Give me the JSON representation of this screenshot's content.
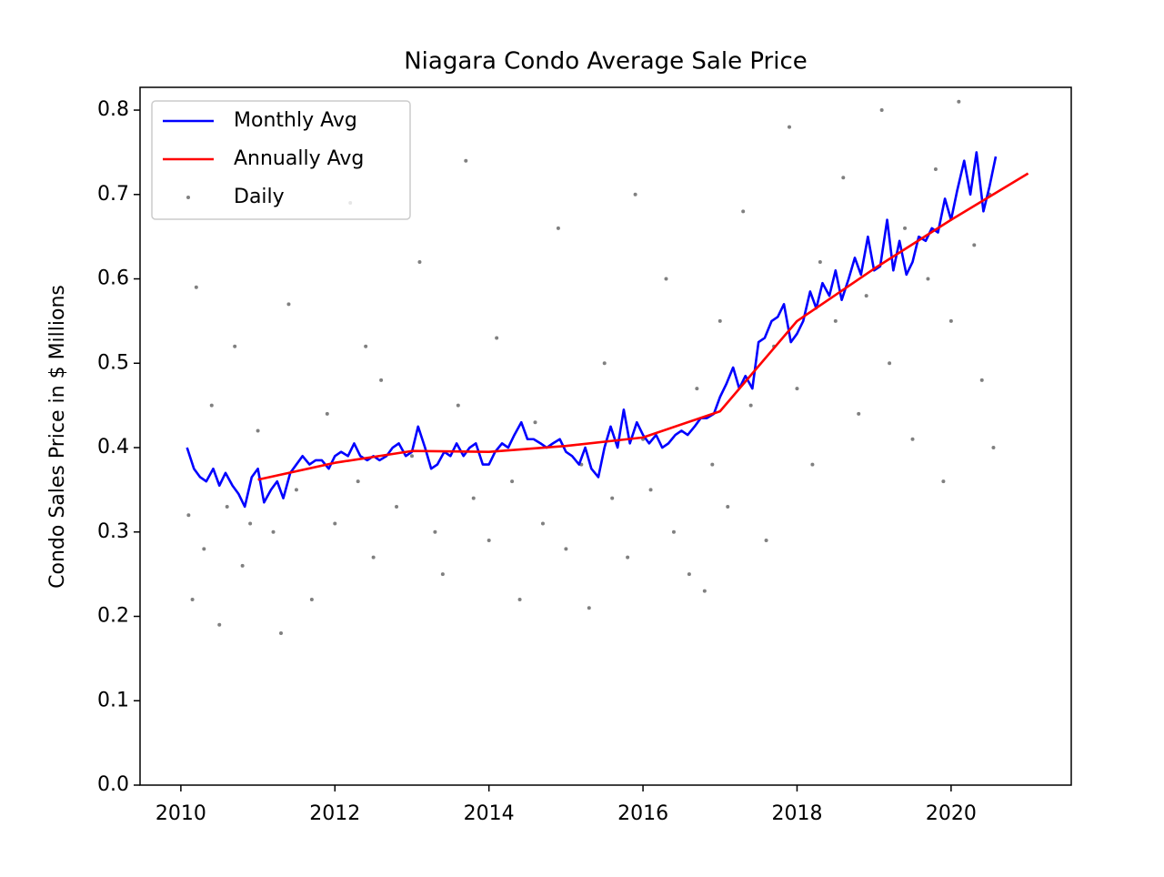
{
  "chart_data": {
    "type": "line",
    "title": "Niagara Condo Average Sale Price",
    "y_label": "Condo Sales Price in $ Millions",
    "xlim": [
      2009.47,
      2021.56
    ],
    "ylim": [
      0,
      0.827
    ],
    "xticks": [
      2010,
      2012,
      2014,
      2016,
      2018,
      2020
    ],
    "yticks": [
      {
        "value": 0,
        "label": "0.0"
      },
      0.1,
      0.2,
      0.3,
      0.4,
      0.5,
      0.6,
      0.7,
      0.8
    ],
    "legend": "upper left",
    "series": [
      {
        "name": "Daily",
        "kind": "scatter",
        "color": "#808080",
        "x": [
          2010.1,
          2010.2,
          2010.3,
          2010.4,
          2010.5,
          2010.6,
          2010.7,
          2010.8,
          2010.9,
          2011.0,
          2011.2,
          2011.4,
          2011.5,
          2011.7,
          2011.9,
          2012.0,
          2012.2,
          2012.3,
          2012.5,
          2012.6,
          2012.8,
          2013.0,
          2013.1,
          2013.3,
          2013.4,
          2013.6,
          2013.8,
          2014.0,
          2014.1,
          2014.3,
          2014.4,
          2014.6,
          2014.7,
          2014.9,
          2015.0,
          2015.2,
          2015.3,
          2015.5,
          2015.6,
          2015.8,
          2016.0,
          2016.1,
          2016.3,
          2016.4,
          2016.6,
          2016.7,
          2016.9,
          2017.0,
          2017.1,
          2017.3,
          2017.4,
          2017.6,
          2017.7,
          2017.9,
          2018.0,
          2018.2,
          2018.3,
          2018.5,
          2018.6,
          2018.8,
          2018.9,
          2019.1,
          2019.2,
          2019.4,
          2019.5,
          2019.7,
          2019.8,
          2020.0,
          2020.1,
          2020.3,
          2020.4,
          2020.5,
          2020.55,
          2010.15,
          2011.3,
          2012.4,
          2013.7,
          2015.9,
          2016.8,
          2019.9
        ],
        "values": [
          0.32,
          0.59,
          0.28,
          0.45,
          0.19,
          0.33,
          0.52,
          0.26,
          0.31,
          0.42,
          0.3,
          0.57,
          0.35,
          0.22,
          0.44,
          0.31,
          0.69,
          0.36,
          0.27,
          0.48,
          0.33,
          0.39,
          0.62,
          0.3,
          0.25,
          0.45,
          0.34,
          0.29,
          0.53,
          0.36,
          0.22,
          0.43,
          0.31,
          0.66,
          0.28,
          0.38,
          0.21,
          0.5,
          0.34,
          0.27,
          0.41,
          0.35,
          0.6,
          0.3,
          0.25,
          0.47,
          0.38,
          0.55,
          0.33,
          0.68,
          0.45,
          0.29,
          0.52,
          0.78,
          0.47,
          0.38,
          0.62,
          0.55,
          0.72,
          0.44,
          0.58,
          0.8,
          0.5,
          0.66,
          0.41,
          0.6,
          0.73,
          0.55,
          0.81,
          0.64,
          0.48,
          0.7,
          0.4,
          0.22,
          0.18,
          0.52,
          0.74,
          0.7,
          0.23,
          0.36
        ]
      },
      {
        "name": "Monthly Avg",
        "kind": "line",
        "color": "#0000ff",
        "x": [
          2010.08,
          2010.17,
          2010.25,
          2010.33,
          2010.42,
          2010.5,
          2010.58,
          2010.67,
          2010.75,
          2010.83,
          2010.92,
          2011.0,
          2011.08,
          2011.17,
          2011.25,
          2011.33,
          2011.42,
          2011.5,
          2011.58,
          2011.67,
          2011.75,
          2011.83,
          2011.92,
          2012.0,
          2012.08,
          2012.17,
          2012.25,
          2012.33,
          2012.42,
          2012.5,
          2012.58,
          2012.67,
          2012.75,
          2012.83,
          2012.92,
          2013.0,
          2013.08,
          2013.17,
          2013.25,
          2013.33,
          2013.42,
          2013.5,
          2013.58,
          2013.67,
          2013.75,
          2013.83,
          2013.92,
          2014.0,
          2014.08,
          2014.17,
          2014.25,
          2014.33,
          2014.42,
          2014.5,
          2014.58,
          2014.67,
          2014.75,
          2014.83,
          2014.92,
          2015.0,
          2015.08,
          2015.17,
          2015.25,
          2015.33,
          2015.42,
          2015.5,
          2015.58,
          2015.67,
          2015.75,
          2015.83,
          2015.92,
          2016.0,
          2016.08,
          2016.17,
          2016.25,
          2016.33,
          2016.42,
          2016.5,
          2016.58,
          2016.67,
          2016.75,
          2016.83,
          2016.92,
          2017.0,
          2017.08,
          2017.17,
          2017.25,
          2017.33,
          2017.42,
          2017.5,
          2017.58,
          2017.67,
          2017.75,
          2017.83,
          2017.92,
          2018.0,
          2018.08,
          2018.17,
          2018.25,
          2018.33,
          2018.42,
          2018.5,
          2018.58,
          2018.67,
          2018.75,
          2018.83,
          2018.92,
          2019.0,
          2019.08,
          2019.17,
          2019.25,
          2019.33,
          2019.42,
          2019.5,
          2019.58,
          2019.67,
          2019.75,
          2019.83,
          2019.92,
          2020.0,
          2020.08,
          2020.17,
          2020.25,
          2020.33,
          2020.42,
          2020.5,
          2020.58
        ],
        "values": [
          0.4,
          0.375,
          0.365,
          0.36,
          0.375,
          0.355,
          0.37,
          0.355,
          0.345,
          0.33,
          0.365,
          0.375,
          0.335,
          0.35,
          0.36,
          0.34,
          0.37,
          0.38,
          0.39,
          0.38,
          0.385,
          0.385,
          0.375,
          0.39,
          0.395,
          0.39,
          0.405,
          0.39,
          0.385,
          0.39,
          0.385,
          0.39,
          0.4,
          0.405,
          0.39,
          0.395,
          0.425,
          0.4,
          0.375,
          0.38,
          0.395,
          0.39,
          0.405,
          0.39,
          0.4,
          0.405,
          0.38,
          0.38,
          0.395,
          0.405,
          0.4,
          0.415,
          0.43,
          0.41,
          0.41,
          0.405,
          0.4,
          0.405,
          0.41,
          0.395,
          0.39,
          0.38,
          0.4,
          0.375,
          0.365,
          0.4,
          0.425,
          0.4,
          0.445,
          0.405,
          0.43,
          0.415,
          0.405,
          0.415,
          0.4,
          0.405,
          0.415,
          0.42,
          0.415,
          0.425,
          0.435,
          0.435,
          0.44,
          0.46,
          0.475,
          0.495,
          0.47,
          0.485,
          0.47,
          0.525,
          0.53,
          0.55,
          0.555,
          0.57,
          0.525,
          0.535,
          0.55,
          0.585,
          0.565,
          0.595,
          0.58,
          0.61,
          0.575,
          0.6,
          0.625,
          0.605,
          0.65,
          0.61,
          0.615,
          0.67,
          0.61,
          0.645,
          0.605,
          0.62,
          0.65,
          0.645,
          0.66,
          0.655,
          0.695,
          0.67,
          0.705,
          0.74,
          0.7,
          0.75,
          0.68,
          0.71,
          0.745
        ]
      },
      {
        "name": "Annually Avg",
        "kind": "line",
        "color": "#ff0000",
        "x": [
          2011,
          2012,
          2013,
          2014,
          2015,
          2016,
          2017,
          2018,
          2019,
          2020,
          2021
        ],
        "values": [
          0.362,
          0.382,
          0.396,
          0.395,
          0.402,
          0.412,
          0.443,
          0.55,
          0.612,
          0.67,
          0.725
        ]
      }
    ]
  }
}
